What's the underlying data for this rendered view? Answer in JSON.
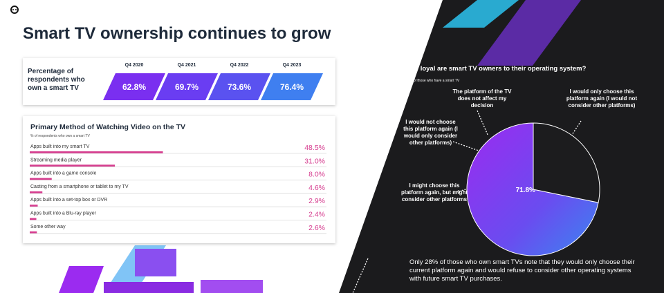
{
  "title": "Smart TV ownership continues to grow",
  "chart_data": [
    {
      "type": "ownership",
      "title": "Percentage of respondents who own a smart TV",
      "categories": [
        "Q4 2020",
        "Q4 2021",
        "Q4 2022",
        "Q4 2023"
      ],
      "values": [
        62.8,
        69.7,
        73.6,
        76.4
      ],
      "value_labels": [
        "62.8%",
        "69.7%",
        "73.6%",
        "76.4%"
      ],
      "colors": [
        "#7a2ff0",
        "#6a3df2",
        "#5a52f0",
        "#3f7ff0"
      ]
    },
    {
      "type": "hbar",
      "title": "Primary Method of Watching Video on the TV",
      "subtitle": "% of respondents who own a smart TV",
      "categories": [
        "Apps built into my smart TV",
        "Streaming media player",
        "Apps built into a game console",
        "Casting from a smartphone or tablet to my TV",
        "Apps built into a set-top box or DVR",
        "Apps built into a Blu-ray player",
        "Some other way"
      ],
      "values": [
        48.5,
        31.0,
        8.0,
        4.6,
        2.9,
        2.4,
        2.6
      ],
      "value_labels": [
        "48.5%",
        "31.0%",
        "8.0%",
        "4.6%",
        "2.9%",
        "2.4%",
        "2.6%"
      ],
      "color": "#d63d8f"
    },
    {
      "type": "pie",
      "title": "How loyal are smart TV owners to their operating system?",
      "subtitle": "% of those who have a smart TV",
      "categories": [
        "I might choose this platform again, but might consider other platforms",
        "I would only choose this platform again (I would not consider other platforms)"
      ],
      "values": [
        71.8,
        28.2
      ],
      "value_labels": [
        "71.8%",
        null
      ],
      "colors": [
        "#8a2be2",
        "#1c1c1e"
      ],
      "annotations": [
        "The platform of the TV does not affect my decision",
        "I would not choose this platform again (I would only consider other platforms)"
      ]
    }
  ],
  "note": "Only 28% of those who own smart TVs note that they would only choose their current platform again and would refuse to consider other operating systems with future smart TV purchases."
}
